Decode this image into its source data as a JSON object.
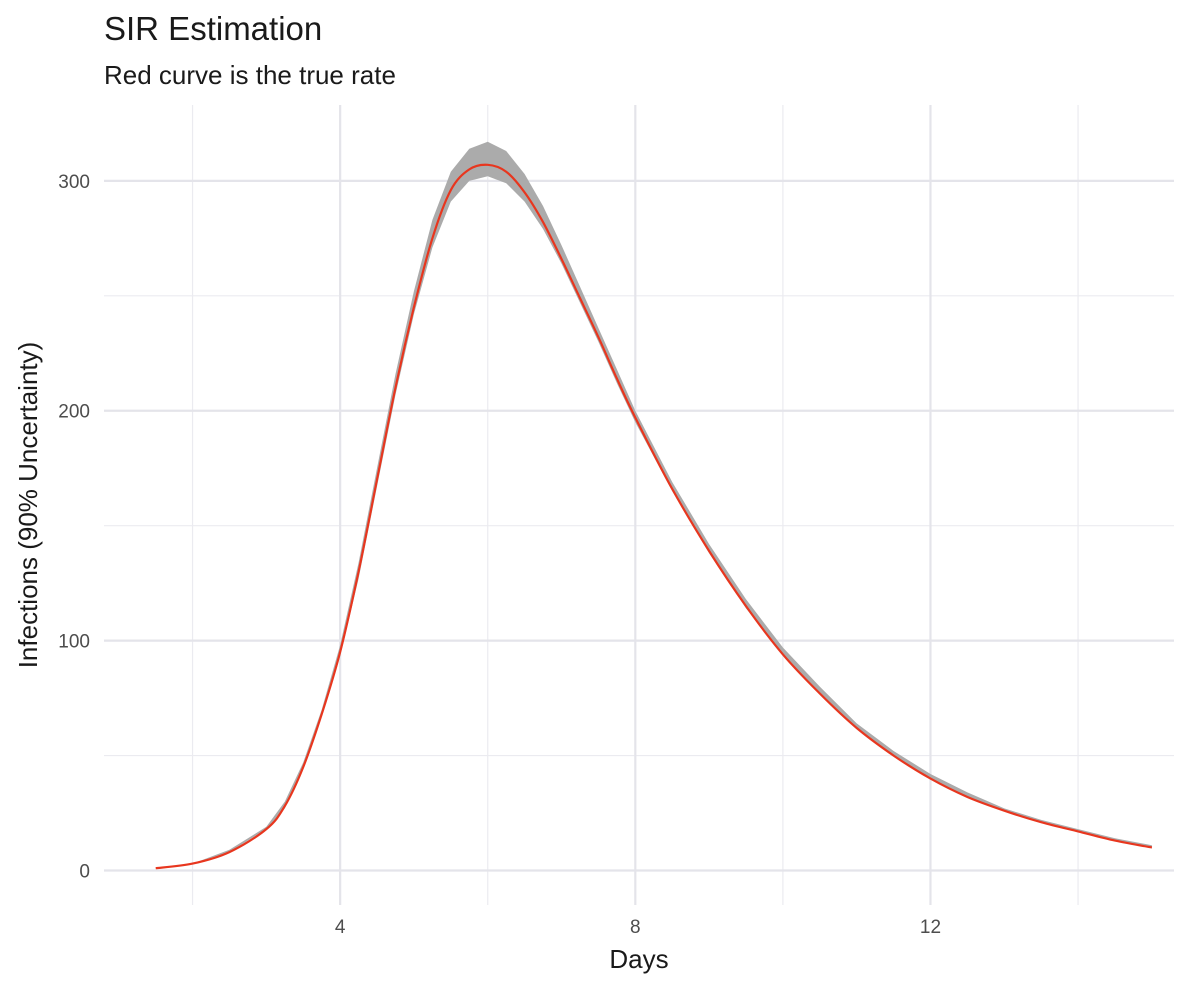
{
  "chart_data": {
    "type": "line",
    "title": "SIR Estimation",
    "subtitle": "Red curve is the true rate",
    "xlabel": "Days",
    "ylabel": "Infections (90% Uncertainty)",
    "xlim": [
      0.8,
      15.3
    ],
    "ylim": [
      -15,
      333
    ],
    "x_ticks": [
      4,
      8,
      12
    ],
    "y_ticks": [
      0,
      100,
      200,
      300
    ],
    "x_minor_ticks": [
      2,
      6,
      10,
      14
    ],
    "y_minor_ticks": [
      50,
      150,
      250
    ],
    "grid": true,
    "band_color": "#ababab",
    "line_color": "#e8361e",
    "series": [
      {
        "role": "true-rate",
        "x": [
          1.5,
          2.0,
          2.5,
          3.0,
          3.25,
          3.5,
          3.75,
          4.0,
          4.25,
          4.5,
          4.75,
          5.0,
          5.25,
          5.5,
          5.75,
          6.0,
          6.25,
          6.5,
          6.75,
          7.0,
          7.25,
          7.5,
          7.75,
          8.0,
          8.5,
          9.0,
          9.5,
          10.0,
          10.5,
          11.0,
          11.5,
          12.0,
          12.5,
          13.0,
          13.5,
          14.0,
          14.5,
          15.0
        ],
        "y": [
          1,
          3,
          8,
          18,
          28,
          45,
          68,
          95,
          130,
          170,
          210,
          245,
          275,
          296,
          305,
          307,
          304,
          295,
          282,
          266,
          249,
          232,
          214,
          197,
          166,
          139,
          115,
          94,
          77,
          62,
          50,
          40,
          32,
          26,
          21,
          17,
          13,
          10
        ]
      }
    ],
    "band": {
      "x": [
        1.5,
        2.0,
        2.5,
        3.0,
        3.25,
        3.5,
        3.75,
        4.0,
        4.25,
        4.5,
        4.75,
        5.0,
        5.25,
        5.5,
        5.75,
        6.0,
        6.25,
        6.5,
        6.75,
        7.0,
        7.25,
        7.5,
        7.75,
        8.0,
        8.5,
        9.0,
        9.5,
        10.0,
        10.5,
        11.0,
        11.5,
        12.0,
        12.5,
        13.0,
        13.5,
        14.0,
        14.5,
        15.0
      ],
      "lower": [
        1,
        3,
        8,
        18,
        27,
        44,
        67,
        93,
        127,
        167,
        207,
        242,
        271,
        291,
        300,
        302,
        299,
        291,
        279,
        264,
        247,
        230,
        212,
        195,
        165,
        138,
        114,
        94,
        77,
        62,
        50,
        40,
        32,
        26,
        21,
        17,
        13,
        10
      ],
      "upper": [
        1,
        3,
        9,
        19,
        30,
        47,
        70,
        98,
        134,
        175,
        216,
        252,
        283,
        304,
        314,
        317,
        313,
        303,
        289,
        272,
        254,
        236,
        218,
        200,
        169,
        142,
        118,
        97,
        80,
        64,
        52,
        42,
        34,
        27,
        22,
        18,
        14,
        11
      ]
    }
  }
}
